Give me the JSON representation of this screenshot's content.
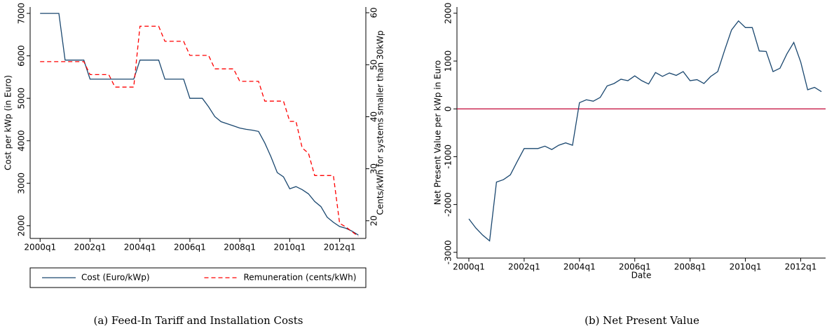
{
  "chart_data": [
    {
      "type": "line",
      "caption": "(a) Feed-In Tariff and Installation Costs",
      "ylabel": "Cost per kWp (in Euro)",
      "y2label": "Cents/kWh for systems smaller than 30kWp",
      "x": [
        2000,
        2000.25,
        2000.5,
        2000.75,
        2001,
        2001.25,
        2001.5,
        2001.75,
        2002,
        2002.25,
        2002.5,
        2002.75,
        2003,
        2003.25,
        2003.5,
        2003.75,
        2004,
        2004.25,
        2004.5,
        2004.75,
        2005,
        2005.25,
        2005.5,
        2005.75,
        2006,
        2006.25,
        2006.5,
        2006.75,
        2007,
        2007.25,
        2007.5,
        2007.75,
        2008,
        2008.25,
        2008.5,
        2008.75,
        2009,
        2009.25,
        2009.5,
        2009.75,
        2010,
        2010.25,
        2010.5,
        2010.75,
        2011,
        2011.25,
        2011.5,
        2011.75,
        2012,
        2012.25,
        2012.5,
        2012.75
      ],
      "series": [
        {
          "name": "Cost (Euro/kWp)",
          "color": "#1a476f",
          "dash": false,
          "values": [
            7000,
            7000,
            7000,
            7000,
            5900,
            5900,
            5900,
            5900,
            5450,
            5450,
            5450,
            5450,
            5450,
            5450,
            5450,
            5450,
            5900,
            5900,
            5900,
            5900,
            5450,
            5450,
            5450,
            5450,
            5000,
            5000,
            5000,
            4800,
            4570,
            4450,
            4400,
            4350,
            4300,
            4270,
            4250,
            4220,
            3950,
            3620,
            3250,
            3150,
            2870,
            2920,
            2850,
            2750,
            2570,
            2450,
            2200,
            2080,
            1980,
            1940,
            1870,
            1780
          ]
        },
        {
          "name": "Remuneration (cents/kWh)",
          "color": "#ff0000",
          "dash": true,
          "axis": "y2",
          "values": [
            50.6,
            50.6,
            50.6,
            50.6,
            50.6,
            50.6,
            50.6,
            50.6,
            48.1,
            48.1,
            48.1,
            48.1,
            45.7,
            45.7,
            45.7,
            45.7,
            57.4,
            57.4,
            57.4,
            57.4,
            54.5,
            54.5,
            54.5,
            54.5,
            51.8,
            51.8,
            51.8,
            51.8,
            49.2,
            49.2,
            49.2,
            49.2,
            46.8,
            46.8,
            46.8,
            46.8,
            43,
            43,
            43,
            43,
            39.1,
            39.1,
            34,
            33,
            28.7,
            28.7,
            28.7,
            28.7,
            19.5,
            18.8,
            17.9,
            17
          ]
        }
      ],
      "xlim": [
        1999.6,
        2013.05
      ],
      "xticks": [
        {
          "value": 2000,
          "label": "2000q1"
        },
        {
          "value": 2002,
          "label": "2002q1"
        },
        {
          "value": 2004,
          "label": "2004q1"
        },
        {
          "value": 2006,
          "label": "2006q1"
        },
        {
          "value": 2008,
          "label": "2008q1"
        },
        {
          "value": 2010,
          "label": "2010q1"
        },
        {
          "value": 2012,
          "label": "2012q1"
        }
      ],
      "ylim": [
        1700,
        7150
      ],
      "yticks": [
        2000,
        3000,
        4000,
        5000,
        6000,
        7000
      ],
      "y2lim": [
        16.6,
        61.1
      ],
      "y2ticks": [
        20,
        30,
        40,
        50,
        60
      ],
      "legend": "bottom"
    },
    {
      "type": "line",
      "caption": "(b) Net Present Value",
      "ylabel": "Net Present Value per kWp in Euro",
      "xlabel": "Date",
      "x": [
        2000,
        2000.25,
        2000.5,
        2000.75,
        2001,
        2001.25,
        2001.5,
        2001.75,
        2002,
        2002.25,
        2002.5,
        2002.75,
        2003,
        2003.25,
        2003.5,
        2003.75,
        2004,
        2004.25,
        2004.5,
        2004.75,
        2005,
        2005.25,
        2005.5,
        2005.75,
        2006,
        2006.25,
        2006.5,
        2006.75,
        2007,
        2007.25,
        2007.5,
        2007.75,
        2008,
        2008.25,
        2008.5,
        2008.75,
        2009,
        2009.25,
        2009.5,
        2009.75,
        2010,
        2010.25,
        2010.5,
        2010.75,
        2011,
        2011.25,
        2011.5,
        2011.75,
        2012,
        2012.25,
        2012.5,
        2012.75
      ],
      "series": [
        {
          "color": "#1a476f",
          "values": [
            -2300,
            -2490,
            -2640,
            -2760,
            -1530,
            -1480,
            -1380,
            -1100,
            -830,
            -830,
            -830,
            -780,
            -850,
            -760,
            -710,
            -760,
            130,
            190,
            160,
            240,
            480,
            530,
            620,
            590,
            690,
            590,
            520,
            760,
            680,
            750,
            700,
            780,
            590,
            610,
            530,
            680,
            780,
            1230,
            1650,
            1840,
            1700,
            1700,
            1210,
            1200,
            780,
            850,
            1150,
            1390,
            980,
            400,
            450,
            360
          ]
        }
      ],
      "hline": 0,
      "hline_color": "#c10534",
      "xlim": [
        1999.57,
        2012.9
      ],
      "xticks": [
        {
          "value": 2000,
          "label": "2000q1"
        },
        {
          "value": 2002,
          "label": "2002q1"
        },
        {
          "value": 2004,
          "label": "2004q1"
        },
        {
          "value": 2006,
          "label": "2006q1"
        },
        {
          "value": 2008,
          "label": "2008q1"
        },
        {
          "value": 2010,
          "label": "2010q1"
        },
        {
          "value": 2012,
          "label": "2012q1"
        }
      ],
      "ylim": [
        -3120,
        2130
      ],
      "yticks": [
        -3000,
        -2000,
        -1000,
        0,
        1000,
        2000
      ]
    }
  ]
}
